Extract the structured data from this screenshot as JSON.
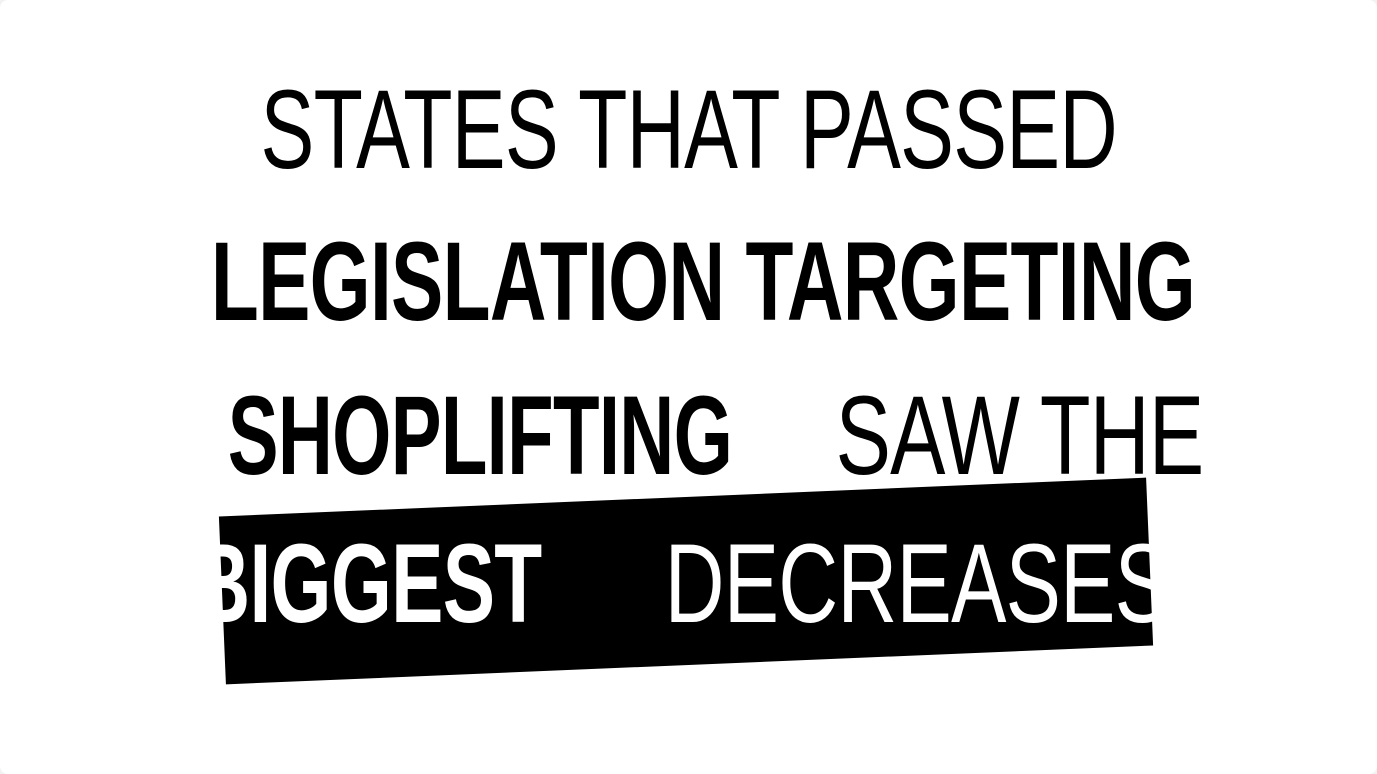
{
  "headline": {
    "line1": {
      "light": "STATES THAT PASSED"
    },
    "line2": {
      "bold": "LEGISLATION TARGETING"
    },
    "line3": {
      "bold": "SHOPLIFTING",
      "light": "SAW THE"
    },
    "line4": {
      "bold": "BIGGEST",
      "light": "DECREASES"
    }
  },
  "colors": {
    "background": "#ffffff",
    "text": "#000000",
    "highlight_band": "#000000",
    "highlight_text": "#ffffff"
  }
}
